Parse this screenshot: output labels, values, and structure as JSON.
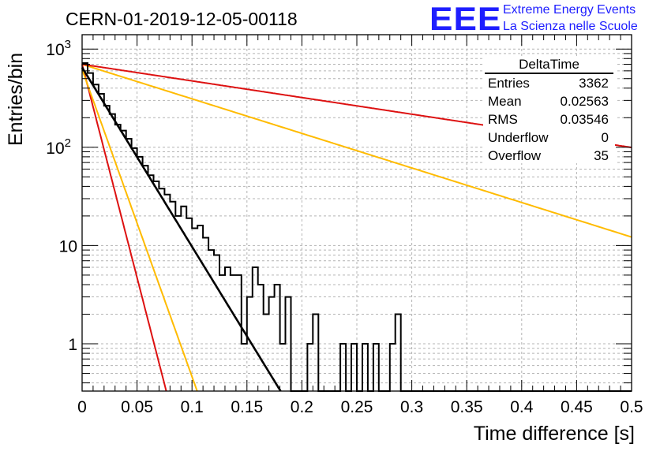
{
  "header": {
    "title": "CERN-01-2019-12-05-00118",
    "logo_text": "EEE",
    "logo_line1": "Extreme Energy Events",
    "logo_line2": "La Scienza nelle Scuole"
  },
  "stats_box": {
    "name": "DeltaTime",
    "rows": [
      {
        "label": "Entries",
        "value": "3362"
      },
      {
        "label": "Mean",
        "value": "0.02563"
      },
      {
        "label": "RMS",
        "value": "0.03546"
      },
      {
        "label": "Underflow",
        "value": "0"
      },
      {
        "label": "Overflow",
        "value": "35"
      }
    ]
  },
  "colors": {
    "histogram": "#000000",
    "fit_black": "#000000",
    "fit_red": "#dd1111",
    "fit_orange": "#ffbb00",
    "logo": "#1e1eff"
  },
  "chart_data": {
    "type": "histogram",
    "xlabel": "Time difference [s]",
    "ylabel": "Entries/bin",
    "xlim": [
      0,
      0.5
    ],
    "ylim": [
      0.33,
      1400
    ],
    "y_scale": "log",
    "grid": true,
    "bin_width": 0.005,
    "x_ticks": [
      "0",
      "0.05",
      "0.1",
      "0.15",
      "0.2",
      "0.25",
      "0.3",
      "0.35",
      "0.4",
      "0.45",
      "0.5"
    ],
    "y_ticks": [
      "1",
      "10",
      "10^2",
      "10^3"
    ],
    "histogram_counts": [
      720,
      570,
      435,
      350,
      265,
      218,
      170,
      148,
      122,
      98,
      80,
      65,
      52,
      45,
      38,
      33,
      28,
      20,
      25,
      19,
      15,
      16,
      12,
      9,
      8,
      5,
      6,
      5,
      5,
      1,
      3,
      6,
      4,
      2,
      3,
      4,
      1,
      3,
      0,
      0,
      0,
      1,
      2,
      0,
      0,
      0,
      0,
      1,
      0,
      1,
      0,
      1,
      0,
      1,
      0,
      0,
      1,
      2,
      0,
      0,
      0,
      0,
      0,
      0,
      0,
      0,
      0,
      0,
      0,
      0,
      0,
      0,
      0,
      0,
      0,
      0,
      0,
      0,
      0,
      0,
      0,
      0,
      0,
      0,
      0,
      0,
      0,
      0,
      0,
      0,
      0,
      0,
      0,
      0,
      0,
      0,
      0,
      0,
      0,
      0
    ],
    "fits": [
      {
        "color": "black",
        "amplitude": 650,
        "slope": -42
      },
      {
        "color": "red",
        "amplitude": 700,
        "slope": -100
      },
      {
        "color": "orange",
        "amplitude": 620,
        "slope": -72
      },
      {
        "color": "orange",
        "amplitude": 700,
        "slope": -8.1
      },
      {
        "color": "red",
        "amplitude": 700,
        "slope": -3.9
      }
    ]
  }
}
